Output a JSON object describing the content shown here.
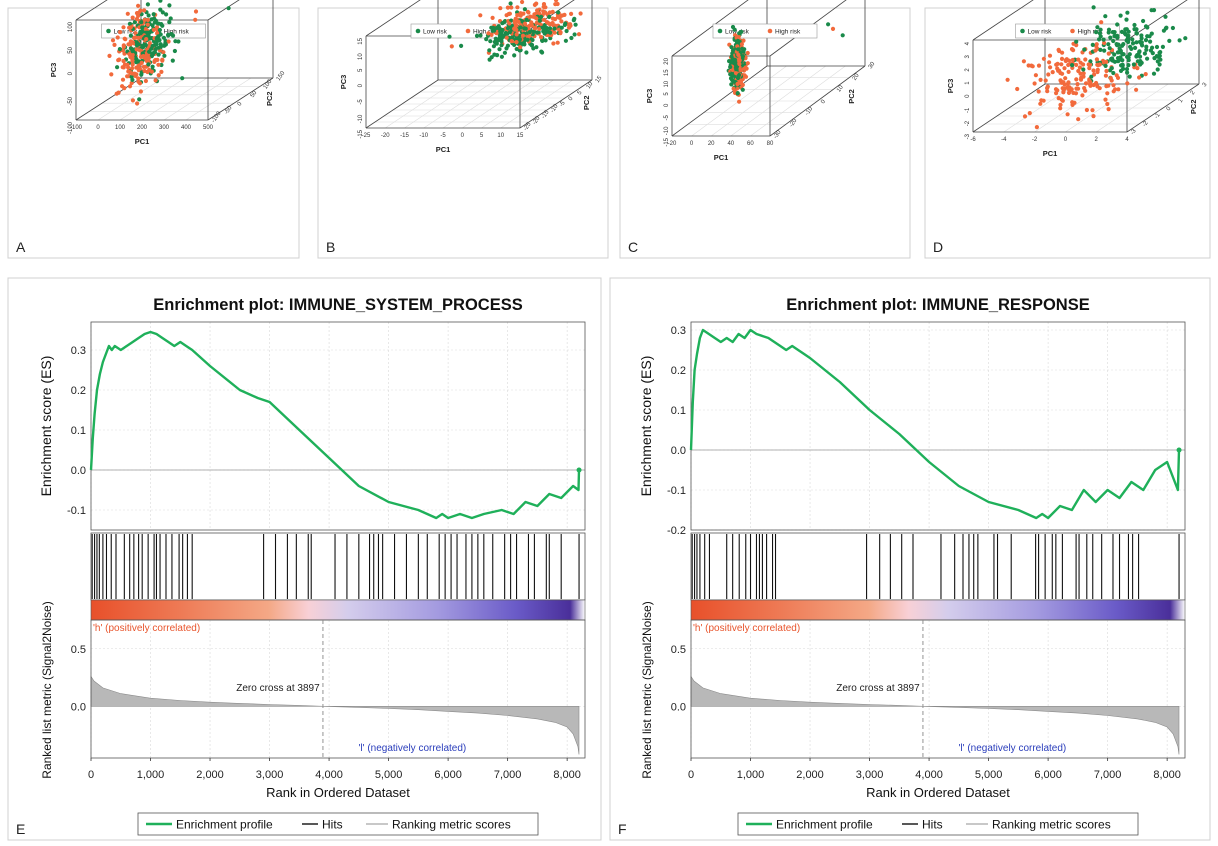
{
  "figure": {
    "panel_letters": [
      "A",
      "B",
      "C",
      "D",
      "E",
      "F"
    ]
  },
  "chart_data": [
    {
      "panel": "A",
      "type": "scatter",
      "title": "",
      "legend": {
        "placement": "top",
        "entries": [
          {
            "name": "Low risk",
            "color": "#1a8a4a"
          },
          {
            "name": "High risk",
            "color": "#f26a3c"
          }
        ]
      },
      "axes": {
        "x": {
          "label": "PC1",
          "ticks": [
            "-100",
            "0",
            "100",
            "200",
            "300",
            "400",
            "500"
          ],
          "range": [
            -100,
            500
          ]
        },
        "y": {
          "label": "PC2",
          "ticks": [
            "-100",
            "-50",
            "0",
            "50",
            "100",
            "150"
          ],
          "range": [
            -100,
            150
          ]
        },
        "z": {
          "label": "PC3",
          "ticks": [
            "-100",
            "-50",
            "0",
            "50",
            "100"
          ],
          "range": [
            -100,
            100
          ]
        }
      },
      "series": [
        {
          "name": "Low risk",
          "cluster": {
            "center": [
              110,
              5,
              25
            ],
            "spread": [
              35,
              30,
              35
            ]
          },
          "outliers": [
            [
              440,
              30,
              80
            ],
            [
              300,
              -30,
              -40
            ],
            [
              200,
              40,
              10
            ]
          ]
        },
        {
          "name": "High risk",
          "cluster": {
            "center": [
              70,
              -5,
              0
            ],
            "spread": [
              40,
              30,
              40
            ]
          },
          "outliers": [
            [
              300,
              20,
              60
            ],
            [
              280,
              40,
              70
            ]
          ]
        }
      ]
    },
    {
      "panel": "B",
      "type": "scatter",
      "title": "",
      "legend": {
        "placement": "top",
        "entries": [
          {
            "name": "Low risk",
            "color": "#1a8a4a"
          },
          {
            "name": "High risk",
            "color": "#f26a3c"
          }
        ]
      },
      "axes": {
        "x": {
          "label": "PC1",
          "ticks": [
            "-25",
            "-20",
            "-15",
            "-10",
            "-5",
            "0",
            "5",
            "10",
            "15"
          ],
          "range": [
            -25,
            15
          ]
        },
        "y": {
          "label": "PC2",
          "ticks": [
            "-25",
            "-20",
            "-15",
            "-10",
            "-5",
            "0",
            "5",
            "10",
            "15"
          ],
          "range": [
            -25,
            15
          ]
        },
        "z": {
          "label": "PC3",
          "ticks": [
            "-15",
            "-10",
            "-5",
            "0",
            "5",
            "10",
            "15"
          ],
          "range": [
            -15,
            15
          ]
        }
      },
      "series": [
        {
          "name": "Low risk",
          "cluster": {
            "center": [
              3,
              2,
              5
            ],
            "spread": [
              5,
              4,
              3
            ]
          },
          "outliers": [
            [
              -12,
              0,
              2
            ],
            [
              -15,
              0,
              5
            ]
          ]
        },
        {
          "name": "High risk",
          "cluster": {
            "center": [
              5,
              3,
              8
            ],
            "spread": [
              5,
              4,
              3
            ]
          },
          "outliers": [
            [
              -13,
              -3,
              3
            ]
          ]
        }
      ]
    },
    {
      "panel": "C",
      "type": "scatter",
      "title": "",
      "legend": {
        "placement": "top",
        "entries": [
          {
            "name": "Low risk",
            "color": "#1a8a4a"
          },
          {
            "name": "High risk",
            "color": "#f26a3c"
          }
        ]
      },
      "axes": {
        "x": {
          "label": "PC1",
          "ticks": [
            "-20",
            "0",
            "20",
            "40",
            "60",
            "80"
          ],
          "range": [
            -20,
            80
          ]
        },
        "y": {
          "label": "PC2",
          "ticks": [
            "-30",
            "-20",
            "-10",
            "0",
            "10",
            "20",
            "30"
          ],
          "range": [
            -30,
            40
          ]
        },
        "z": {
          "label": "PC3",
          "ticks": [
            "-15",
            "-10",
            "-5",
            "0",
            "5",
            "10",
            "15",
            "20"
          ],
          "range": [
            -15,
            20
          ]
        }
      },
      "series": [
        {
          "name": "Low risk",
          "cluster": {
            "center": [
              5,
              0,
              5
            ],
            "spread": [
              2,
              2,
              6
            ]
          },
          "outliers": [
            [
              70,
              20,
              12
            ],
            [
              78,
              25,
              5
            ]
          ]
        },
        {
          "name": "High risk",
          "cluster": {
            "center": [
              6,
              0,
              3
            ],
            "spread": [
              2,
              2,
              6
            ]
          },
          "outliers": [
            [
              75,
              20,
              10
            ]
          ]
        }
      ]
    },
    {
      "panel": "D",
      "type": "scatter",
      "title": "",
      "legend": {
        "placement": "top",
        "entries": [
          {
            "name": "Low risk",
            "color": "#1a8a4a"
          },
          {
            "name": "High risk",
            "color": "#f26a3c"
          }
        ]
      },
      "axes": {
        "x": {
          "label": "PC1",
          "ticks": [
            "-6",
            "-4",
            "-2",
            "0",
            "2",
            "4"
          ],
          "range": [
            -6,
            4
          ]
        },
        "y": {
          "label": "PC2",
          "ticks": [
            "-3",
            "-2",
            "-1",
            "0",
            "1",
            "2",
            "3"
          ],
          "range": [
            -3,
            3
          ]
        },
        "z": {
          "label": "PC3",
          "ticks": [
            "-3",
            "-2",
            "-1",
            "0",
            "1",
            "2",
            "3",
            "4"
          ],
          "range": [
            -3,
            4
          ]
        }
      },
      "series": [
        {
          "name": "Low risk",
          "cluster": {
            "center": [
              1.2,
              0.5,
              1.3
            ],
            "spread": [
              1.2,
              1,
              1
            ]
          },
          "outliers": []
        },
        {
          "name": "High risk",
          "cluster": {
            "center": [
              -1.5,
              -0.3,
              -0.5
            ],
            "spread": [
              1.5,
              1,
              1.2
            ]
          },
          "outliers": []
        }
      ]
    },
    {
      "panel": "E",
      "type": "line",
      "title": "Enrichment plot: IMMUNE_SYSTEM_PROCESS",
      "ylabel_es": "Enrichment score (ES)",
      "ylabel_metric": "Ranked list metric (Signal2Noise)",
      "xlabel": "Rank in Ordered Dataset",
      "xlim": [
        0,
        8300
      ],
      "x_ticks": [
        "0",
        "1,000",
        "2,000",
        "3,000",
        "4,000",
        "5,000",
        "6,000",
        "7,000",
        "8,000"
      ],
      "es_ylim": [
        -0.15,
        0.37
      ],
      "es_ticks": [
        "0.3",
        "0.2",
        "0.1",
        "0.0",
        "-0.1"
      ],
      "es_profile": {
        "x": [
          0,
          30,
          60,
          100,
          150,
          200,
          250,
          300,
          350,
          400,
          500,
          600,
          700,
          800,
          900,
          1000,
          1100,
          1200,
          1300,
          1400,
          1500,
          1600,
          1700,
          2000,
          2500,
          2800,
          3000,
          3500,
          4000,
          4500,
          5000,
          5500,
          5800,
          5900,
          6000,
          6200,
          6400,
          6600,
          6900,
          7100,
          7300,
          7500,
          7700,
          7900,
          8100,
          8190,
          8200
        ],
        "y": [
          0.0,
          0.08,
          0.14,
          0.2,
          0.24,
          0.27,
          0.29,
          0.31,
          0.3,
          0.31,
          0.3,
          0.31,
          0.32,
          0.33,
          0.34,
          0.345,
          0.34,
          0.33,
          0.32,
          0.31,
          0.32,
          0.31,
          0.3,
          0.26,
          0.2,
          0.18,
          0.17,
          0.1,
          0.03,
          -0.04,
          -0.08,
          -0.1,
          -0.12,
          -0.11,
          -0.12,
          -0.11,
          -0.12,
          -0.11,
          -0.1,
          -0.11,
          -0.08,
          -0.09,
          -0.06,
          -0.07,
          -0.04,
          -0.05,
          0.0
        ]
      },
      "hits": [
        20,
        60,
        100,
        140,
        200,
        260,
        340,
        420,
        560,
        650,
        720,
        800,
        860,
        960,
        1060,
        1100,
        1160,
        1260,
        1360,
        1480,
        1540,
        1620,
        1700,
        2900,
        3100,
        3300,
        3450,
        3650,
        3700,
        4100,
        4300,
        4500,
        4680,
        4750,
        4830,
        4900,
        5100,
        5300,
        5500,
        5650,
        5850,
        5950,
        6050,
        6150,
        6300,
        6400,
        6500,
        6600,
        6750,
        6950,
        7050,
        7150,
        7350,
        7450,
        7650,
        7700,
        7900,
        8200
      ],
      "ranking_metric": {
        "x": [
          0,
          50,
          200,
          500,
          1000,
          1500,
          2000,
          2500,
          3000,
          3500,
          3897,
          4500,
          5000,
          5500,
          6000,
          6500,
          7000,
          7500,
          7800,
          8000,
          8100,
          8180,
          8200
        ],
        "y": [
          0.26,
          0.22,
          0.16,
          0.11,
          0.07,
          0.05,
          0.035,
          0.025,
          0.015,
          0.007,
          0.0,
          -0.01,
          -0.02,
          -0.03,
          -0.045,
          -0.06,
          -0.08,
          -0.11,
          -0.14,
          -0.18,
          -0.24,
          -0.35,
          -0.42
        ]
      },
      "metric_ylim": [
        -0.45,
        0.75
      ],
      "metric_ticks": [
        "0.5",
        "0.0"
      ],
      "zero_cross": 3897,
      "zero_cross_label": "Zero cross at 3897",
      "pos_label": "'h' (positively correlated)",
      "neg_label": "'l' (negatively correlated)",
      "legend": {
        "placement": "bottom",
        "entries": [
          "Enrichment profile",
          "Hits",
          "Ranking metric scores"
        ]
      }
    },
    {
      "panel": "F",
      "type": "line",
      "title": "Enrichment plot: IMMUNE_RESPONSE",
      "ylabel_es": "Enrichment score (ES)",
      "ylabel_metric": "Ranked list metric (Signal2Noise)",
      "xlabel": "Rank in Ordered Dataset",
      "xlim": [
        0,
        8300
      ],
      "x_ticks": [
        "0",
        "1,000",
        "2,000",
        "3,000",
        "4,000",
        "5,000",
        "6,000",
        "7,000",
        "8,000"
      ],
      "es_ylim": [
        -0.2,
        0.32
      ],
      "es_ticks": [
        "0.3",
        "0.2",
        "0.1",
        "0.0",
        "-0.1",
        "-0.2"
      ],
      "es_profile": {
        "x": [
          0,
          30,
          60,
          100,
          150,
          200,
          300,
          400,
          500,
          600,
          700,
          800,
          900,
          1000,
          1100,
          1300,
          1500,
          1600,
          1700,
          1900,
          2000,
          2500,
          3000,
          3500,
          4000,
          4500,
          5000,
          5500,
          5800,
          5900,
          6000,
          6200,
          6400,
          6600,
          6800,
          7000,
          7200,
          7400,
          7600,
          7800,
          8000,
          8180,
          8200
        ],
        "y": [
          0.0,
          0.12,
          0.2,
          0.24,
          0.28,
          0.3,
          0.29,
          0.28,
          0.27,
          0.28,
          0.27,
          0.29,
          0.28,
          0.3,
          0.29,
          0.28,
          0.26,
          0.25,
          0.26,
          0.24,
          0.23,
          0.17,
          0.1,
          0.04,
          -0.03,
          -0.09,
          -0.13,
          -0.15,
          -0.17,
          -0.16,
          -0.17,
          -0.14,
          -0.15,
          -0.1,
          -0.13,
          -0.1,
          -0.12,
          -0.08,
          -0.1,
          -0.05,
          -0.03,
          -0.1,
          0.0
        ]
      },
      "hits": [
        20,
        60,
        100,
        150,
        230,
        310,
        600,
        700,
        810,
        920,
        1000,
        1100,
        1150,
        1200,
        1270,
        1370,
        1420,
        2950,
        3170,
        3350,
        3540,
        3730,
        4200,
        4430,
        4570,
        4670,
        4750,
        4820,
        5090,
        5150,
        5380,
        5790,
        5840,
        5950,
        6070,
        6130,
        6240,
        6470,
        6520,
        6650,
        6750,
        6900,
        7090,
        7200,
        7350,
        7420,
        7520,
        8200
      ],
      "ranking_metric": {
        "x": [
          0,
          50,
          200,
          500,
          1000,
          1500,
          2000,
          2500,
          3000,
          3500,
          3897,
          4500,
          5000,
          5500,
          6000,
          6500,
          7000,
          7500,
          7800,
          8000,
          8100,
          8180,
          8200
        ],
        "y": [
          0.26,
          0.22,
          0.16,
          0.11,
          0.07,
          0.05,
          0.035,
          0.025,
          0.015,
          0.007,
          0.0,
          -0.01,
          -0.02,
          -0.03,
          -0.045,
          -0.06,
          -0.08,
          -0.11,
          -0.14,
          -0.18,
          -0.24,
          -0.35,
          -0.42
        ]
      },
      "metric_ylim": [
        -0.45,
        0.75
      ],
      "metric_ticks": [
        "0.5",
        "0.0"
      ],
      "zero_cross": 3897,
      "zero_cross_label": "Zero cross at 3897",
      "pos_label": "'h' (positively correlated)",
      "neg_label": "'l' (negatively correlated)",
      "legend": {
        "placement": "bottom",
        "entries": [
          "Enrichment profile",
          "Hits",
          "Ranking metric scores"
        ]
      }
    }
  ],
  "colors": {
    "low_risk": "#1a8a4a",
    "high_risk": "#f26a3c",
    "es_line": "#1fb05a",
    "hits": "#111111",
    "metric_fill": "#b8b8b8",
    "pos_label": "#e8542c",
    "neg_label": "#2a3dbb",
    "grid": "#d9d9d9"
  }
}
